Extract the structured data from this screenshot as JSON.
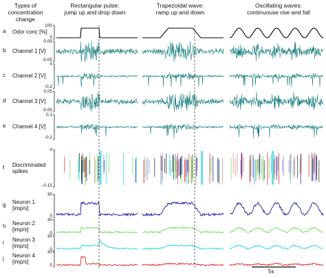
{
  "headers": {
    "types": "Types of\nconcentration change",
    "rect": "Rectangular pulse:\njump up and drop down",
    "trap": "Trapezoidal wave:\nramp up and down",
    "osc": "Oscillating waves:\ncontinuouse rise and fall"
  },
  "scalebar": {
    "label": "5s"
  },
  "chart_data": {
    "type": "line",
    "panels": [
      "Rectangular pulse",
      "Trapezoidal wave",
      "Oscillating waves"
    ],
    "rows": [
      {
        "letter": "a",
        "label": "Odor conc [%]",
        "ticks": [
          "100",
          "0"
        ],
        "color": "#000000",
        "kind": "odor",
        "values": {
          "rect": [
            0,
            100,
            0
          ],
          "trap": [
            0,
            100,
            0
          ],
          "osc": [
            0,
            100,
            0
          ]
        }
      },
      {
        "letter": "b",
        "label": "Channel 1 [V]",
        "ticks": [
          "0.05",
          "-0.05"
        ],
        "color": "#1a7f7f",
        "kind": "noise"
      },
      {
        "letter": "c",
        "label": "Channel 2 [V]",
        "ticks": [
          "0",
          "-0.2"
        ],
        "color": "#1a7f7f",
        "kind": "spikes"
      },
      {
        "letter": "d",
        "label": "Channel 3 [V]",
        "ticks": [
          "0.05",
          "-0.05"
        ],
        "color": "#1a7f7f",
        "kind": "noise"
      },
      {
        "letter": "e",
        "label": "Channel 4 [V]",
        "ticks": [
          "0.1",
          "-0.2"
        ],
        "color": "#1a7f7f",
        "kind": "spikes"
      },
      {
        "letter": "f",
        "label": "Discriminated\nspikes",
        "ticks": [
          "0",
          "-0.15"
        ],
        "color": "#2020c0",
        "kind": "sorted"
      },
      {
        "letter": "g",
        "label": "Neuron 1\n[imp/s]",
        "ticks": [
          "30",
          "0"
        ],
        "color": "#1a1aa0",
        "kind": "rate"
      },
      {
        "letter": "h",
        "label": "Neuron 2\n[imp/s]",
        "ticks": [
          "30",
          "0"
        ],
        "color": "#66dd55",
        "kind": "rate"
      },
      {
        "letter": "i",
        "label": "Neuron 3\n[imp/s]",
        "ticks": [
          "30",
          "0"
        ],
        "color": "#22d4d4",
        "kind": "rate"
      },
      {
        "letter": "j",
        "label": "Neuron 4\n[imp/s]",
        "ticks": [
          "30",
          "0"
        ],
        "color": "#dd2222",
        "kind": "rate"
      }
    ],
    "spike_colors": [
      "#1a1aa0",
      "#66dd55",
      "#22d4d4",
      "#dd2222",
      "#222222",
      "#e08080",
      "#8080e0"
    ]
  }
}
